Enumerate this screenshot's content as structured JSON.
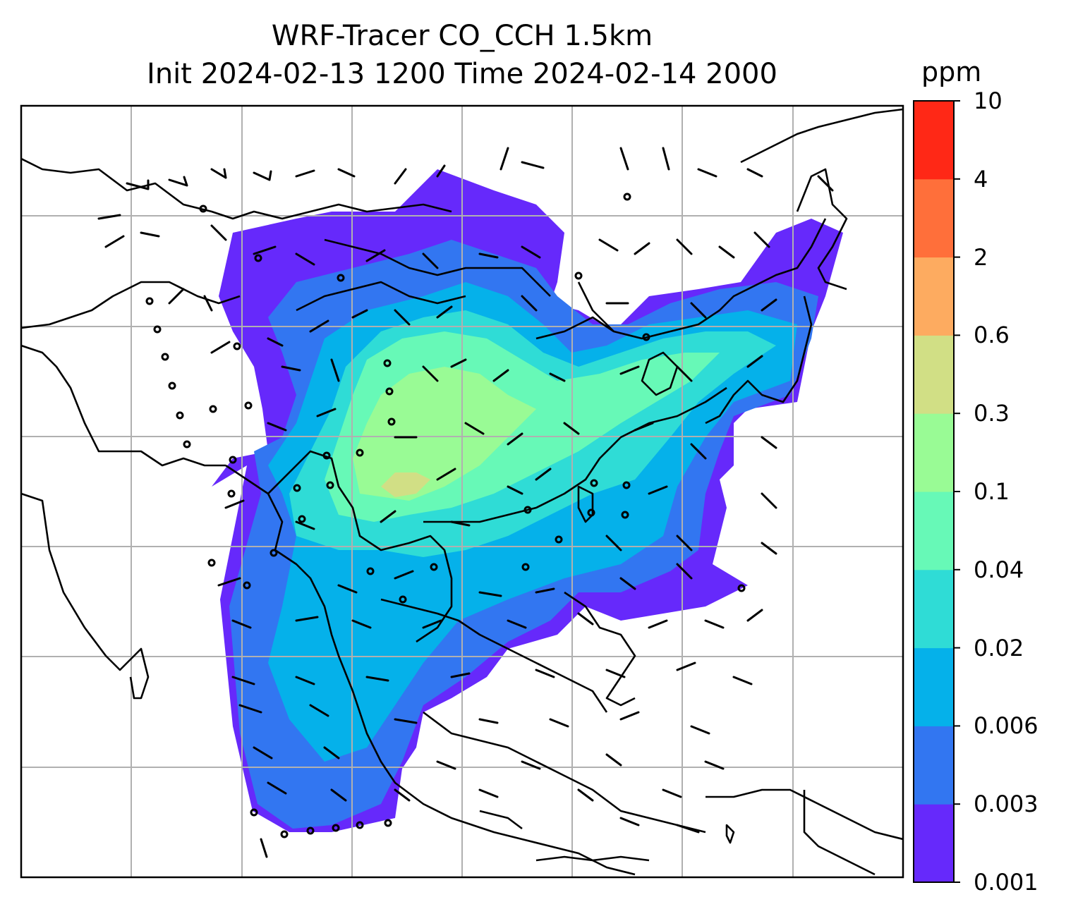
{
  "title": {
    "line1": "WRF-Tracer CO_CCH 1.5km",
    "line2": "Init 2024-02-13 1200 Time 2024-02-14 2000"
  },
  "colorbar": {
    "unit": "ppm",
    "levels": [
      "0.001",
      "0.003",
      "0.006",
      "0.02",
      "0.04",
      "0.1",
      "0.3",
      "0.6",
      "2",
      "4",
      "10"
    ],
    "colors": [
      "#6629fb",
      "#3276f1",
      "#05b1ea",
      "#2fdcd6",
      "#67f9b7",
      "#99fb95",
      "#d1df85",
      "#fdab60",
      "#ff6f3a",
      "#ff2816"
    ]
  },
  "map": {
    "gridlines": true,
    "wind_barbs": true
  }
}
